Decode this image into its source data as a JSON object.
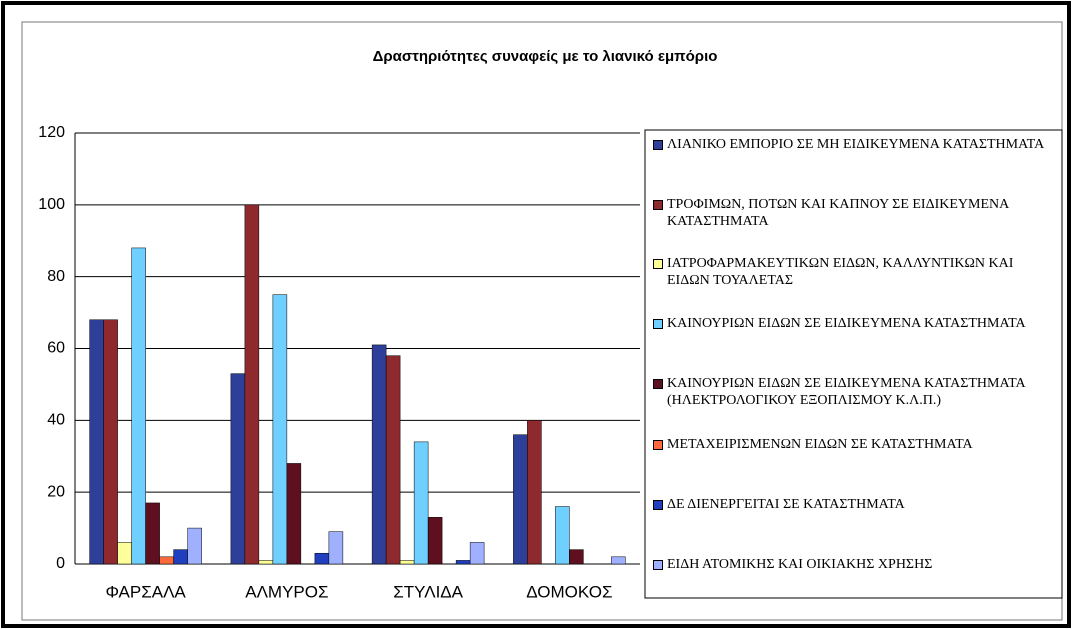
{
  "chart_data": {
    "type": "bar",
    "title": "Δραστηριότητες συναφείς με το λιανικό εμπόριο",
    "categories": [
      "ΦΑΡΣΑΛΑ",
      "ΑΛΜΥΡΟΣ",
      "ΣΤΥΛΙΔΑ",
      "ΔΟΜΟΚΟΣ"
    ],
    "series": [
      {
        "name": "ΛΙΑΝΙΚΟ ΕΜΠΟΡΙΟ ΣΕ ΜΗ ΕΙΔΙΚΕΥΜΕΝΑ ΚΑΤΑΣΤΗΜΑΤΑ",
        "color": "#2e3f9a",
        "values": [
          68,
          53,
          61,
          36
        ]
      },
      {
        "name": "ΤΡΟΦΙΜΩΝ, ΠΟΤΩΝ ΚΑΙ ΚΑΠΝΟΥ ΣΕ ΕΙΔΙΚΕΥΜΕΝΑ ΚΑΤΑΣΤΗΜΑΤΑ",
        "color": "#8e2a2e",
        "values": [
          68,
          100,
          58,
          40
        ]
      },
      {
        "name": "ΙΑΤΡΟΦΑΡΜΑΚΕΥΤΙΚΩΝ ΕΙΔΩΝ, ΚΑΛΛΥΝΤΙΚΩΝ ΚΑΙ ΕΙΔΩΝ ΤΟΥΑΛΕΤΑΣ",
        "color": "#ffff99",
        "values": [
          6,
          1,
          1,
          0
        ]
      },
      {
        "name": "ΚΑΙΝΟΥΡΙΩΝ ΕΙΔΩΝ ΣΕ ΕΙΔΙΚΕΥΜΕΝΑ ΚΑΤΑΣΤΗΜΑΤΑ",
        "color": "#6fd0ff",
        "values": [
          88,
          75,
          34,
          16
        ]
      },
      {
        "name": "ΚΑΙΝΟΥΡΙΩΝ ΕΙΔΩΝ ΣΕ ΕΙΔΙΚΕΥΜΕΝΑ ΚΑΤΑΣΤΗΜΑΤΑ (ΗΛΕΚΤΡΟΛΟΓΙΚΟΥ ΕΞΟΠΛΙΣΜΟΥ Κ.Λ.Π.)",
        "color": "#5e1020",
        "values": [
          17,
          28,
          13,
          4
        ]
      },
      {
        "name": "ΜΕΤΑΧΕΙΡΙΣΜΕΝΩΝ ΕΙΔΩΝ ΣΕ ΚΑΤΑΣΤΗΜΑΤΑ",
        "color": "#ff6a3d",
        "values": [
          2,
          0,
          0,
          0
        ]
      },
      {
        "name": "ΔΕ ΔΙΕΝΕΡΓΕΙΤΑΙ ΣΕ ΚΑΤΑΣΤΗΜΑΤΑ",
        "color": "#1f3fbf",
        "values": [
          4,
          3,
          1,
          0
        ]
      },
      {
        "name": "ΕΙΔΗ ΑΤΟΜΙΚΗΣ ΚΑΙ ΟΙΚΙΑΚΗΣ ΧΡΗΣΗΣ",
        "color": "#9fb0ff",
        "values": [
          10,
          9,
          6,
          2
        ]
      }
    ],
    "ylim": [
      0,
      120
    ],
    "yticks": [
      0,
      20,
      40,
      60,
      80,
      100,
      120
    ],
    "grid": true,
    "legend": "right"
  }
}
